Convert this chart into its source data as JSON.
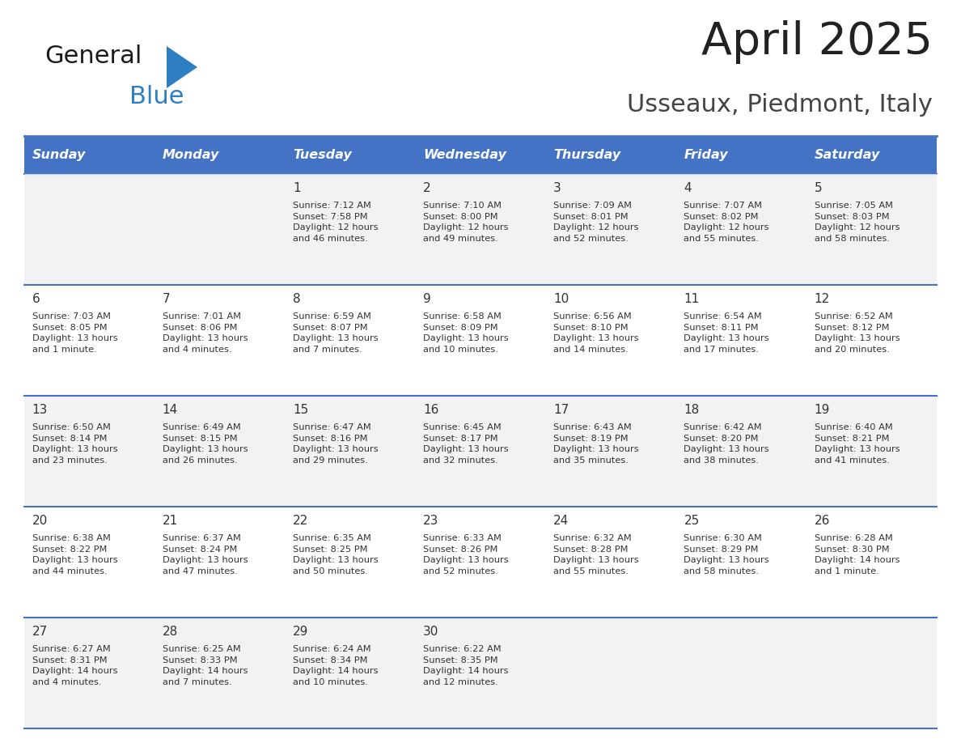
{
  "title": "April 2025",
  "subtitle": "Usseaux, Piedmont, Italy",
  "days_of_week": [
    "Sunday",
    "Monday",
    "Tuesday",
    "Wednesday",
    "Thursday",
    "Friday",
    "Saturday"
  ],
  "header_bg": "#4472C4",
  "header_text": "#FFFFFF",
  "row_bg_odd": "#F2F2F2",
  "row_bg_even": "#FFFFFF",
  "row_separator": "#4472C4",
  "cell_text_color": "#333333",
  "title_color": "#222222",
  "subtitle_color": "#444444",
  "logo_general_color": "#1a1a1a",
  "logo_blue_color": "#2E7EC2",
  "logo_triangle_color": "#2E7EC2",
  "weeks": [
    [
      {
        "day": "",
        "content": ""
      },
      {
        "day": "",
        "content": ""
      },
      {
        "day": "1",
        "content": "Sunrise: 7:12 AM\nSunset: 7:58 PM\nDaylight: 12 hours\nand 46 minutes."
      },
      {
        "day": "2",
        "content": "Sunrise: 7:10 AM\nSunset: 8:00 PM\nDaylight: 12 hours\nand 49 minutes."
      },
      {
        "day": "3",
        "content": "Sunrise: 7:09 AM\nSunset: 8:01 PM\nDaylight: 12 hours\nand 52 minutes."
      },
      {
        "day": "4",
        "content": "Sunrise: 7:07 AM\nSunset: 8:02 PM\nDaylight: 12 hours\nand 55 minutes."
      },
      {
        "day": "5",
        "content": "Sunrise: 7:05 AM\nSunset: 8:03 PM\nDaylight: 12 hours\nand 58 minutes."
      }
    ],
    [
      {
        "day": "6",
        "content": "Sunrise: 7:03 AM\nSunset: 8:05 PM\nDaylight: 13 hours\nand 1 minute."
      },
      {
        "day": "7",
        "content": "Sunrise: 7:01 AM\nSunset: 8:06 PM\nDaylight: 13 hours\nand 4 minutes."
      },
      {
        "day": "8",
        "content": "Sunrise: 6:59 AM\nSunset: 8:07 PM\nDaylight: 13 hours\nand 7 minutes."
      },
      {
        "day": "9",
        "content": "Sunrise: 6:58 AM\nSunset: 8:09 PM\nDaylight: 13 hours\nand 10 minutes."
      },
      {
        "day": "10",
        "content": "Sunrise: 6:56 AM\nSunset: 8:10 PM\nDaylight: 13 hours\nand 14 minutes."
      },
      {
        "day": "11",
        "content": "Sunrise: 6:54 AM\nSunset: 8:11 PM\nDaylight: 13 hours\nand 17 minutes."
      },
      {
        "day": "12",
        "content": "Sunrise: 6:52 AM\nSunset: 8:12 PM\nDaylight: 13 hours\nand 20 minutes."
      }
    ],
    [
      {
        "day": "13",
        "content": "Sunrise: 6:50 AM\nSunset: 8:14 PM\nDaylight: 13 hours\nand 23 minutes."
      },
      {
        "day": "14",
        "content": "Sunrise: 6:49 AM\nSunset: 8:15 PM\nDaylight: 13 hours\nand 26 minutes."
      },
      {
        "day": "15",
        "content": "Sunrise: 6:47 AM\nSunset: 8:16 PM\nDaylight: 13 hours\nand 29 minutes."
      },
      {
        "day": "16",
        "content": "Sunrise: 6:45 AM\nSunset: 8:17 PM\nDaylight: 13 hours\nand 32 minutes."
      },
      {
        "day": "17",
        "content": "Sunrise: 6:43 AM\nSunset: 8:19 PM\nDaylight: 13 hours\nand 35 minutes."
      },
      {
        "day": "18",
        "content": "Sunrise: 6:42 AM\nSunset: 8:20 PM\nDaylight: 13 hours\nand 38 minutes."
      },
      {
        "day": "19",
        "content": "Sunrise: 6:40 AM\nSunset: 8:21 PM\nDaylight: 13 hours\nand 41 minutes."
      }
    ],
    [
      {
        "day": "20",
        "content": "Sunrise: 6:38 AM\nSunset: 8:22 PM\nDaylight: 13 hours\nand 44 minutes."
      },
      {
        "day": "21",
        "content": "Sunrise: 6:37 AM\nSunset: 8:24 PM\nDaylight: 13 hours\nand 47 minutes."
      },
      {
        "day": "22",
        "content": "Sunrise: 6:35 AM\nSunset: 8:25 PM\nDaylight: 13 hours\nand 50 minutes."
      },
      {
        "day": "23",
        "content": "Sunrise: 6:33 AM\nSunset: 8:26 PM\nDaylight: 13 hours\nand 52 minutes."
      },
      {
        "day": "24",
        "content": "Sunrise: 6:32 AM\nSunset: 8:28 PM\nDaylight: 13 hours\nand 55 minutes."
      },
      {
        "day": "25",
        "content": "Sunrise: 6:30 AM\nSunset: 8:29 PM\nDaylight: 13 hours\nand 58 minutes."
      },
      {
        "day": "26",
        "content": "Sunrise: 6:28 AM\nSunset: 8:30 PM\nDaylight: 14 hours\nand 1 minute."
      }
    ],
    [
      {
        "day": "27",
        "content": "Sunrise: 6:27 AM\nSunset: 8:31 PM\nDaylight: 14 hours\nand 4 minutes."
      },
      {
        "day": "28",
        "content": "Sunrise: 6:25 AM\nSunset: 8:33 PM\nDaylight: 14 hours\nand 7 minutes."
      },
      {
        "day": "29",
        "content": "Sunrise: 6:24 AM\nSunset: 8:34 PM\nDaylight: 14 hours\nand 10 minutes."
      },
      {
        "day": "30",
        "content": "Sunrise: 6:22 AM\nSunset: 8:35 PM\nDaylight: 14 hours\nand 12 minutes."
      },
      {
        "day": "",
        "content": ""
      },
      {
        "day": "",
        "content": ""
      },
      {
        "day": "",
        "content": ""
      }
    ]
  ]
}
